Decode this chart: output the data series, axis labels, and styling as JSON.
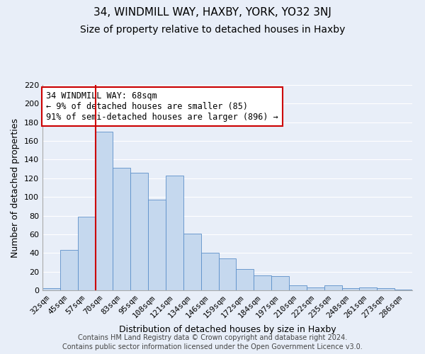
{
  "title": "34, WINDMILL WAY, HAXBY, YORK, YO32 3NJ",
  "subtitle": "Size of property relative to detached houses in Haxby",
  "xlabel": "Distribution of detached houses by size in Haxby",
  "ylabel": "Number of detached properties",
  "footer1": "Contains HM Land Registry data © Crown copyright and database right 2024.",
  "footer2": "Contains public sector information licensed under the Open Government Licence v3.0.",
  "categories": [
    "32sqm",
    "45sqm",
    "57sqm",
    "70sqm",
    "83sqm",
    "95sqm",
    "108sqm",
    "121sqm",
    "134sqm",
    "146sqm",
    "159sqm",
    "172sqm",
    "184sqm",
    "197sqm",
    "210sqm",
    "222sqm",
    "235sqm",
    "248sqm",
    "261sqm",
    "273sqm",
    "286sqm"
  ],
  "values": [
    2,
    43,
    79,
    170,
    131,
    126,
    97,
    123,
    61,
    40,
    34,
    23,
    16,
    15,
    5,
    3,
    5,
    2,
    3,
    2,
    1
  ],
  "bar_color": "#c5d8ee",
  "bar_edge_color": "#5b8fc9",
  "vline_color": "#cc0000",
  "vline_x_index": 3,
  "annotation_line1": "34 WINDMILL WAY: 68sqm",
  "annotation_line2": "← 9% of detached houses are smaller (85)",
  "annotation_line3": "91% of semi-detached houses are larger (896) →",
  "annotation_box_facecolor": "white",
  "annotation_box_edgecolor": "#cc0000",
  "ylim": [
    0,
    220
  ],
  "yticks": [
    0,
    20,
    40,
    60,
    80,
    100,
    120,
    140,
    160,
    180,
    200,
    220
  ],
  "bg_color": "#e8eef8",
  "fig_bg_color": "#e8eef8",
  "grid_color": "white",
  "title_fontsize": 11,
  "subtitle_fontsize": 10,
  "ylabel_fontsize": 9,
  "xlabel_fontsize": 9,
  "tick_fontsize": 8,
  "footer_fontsize": 7
}
